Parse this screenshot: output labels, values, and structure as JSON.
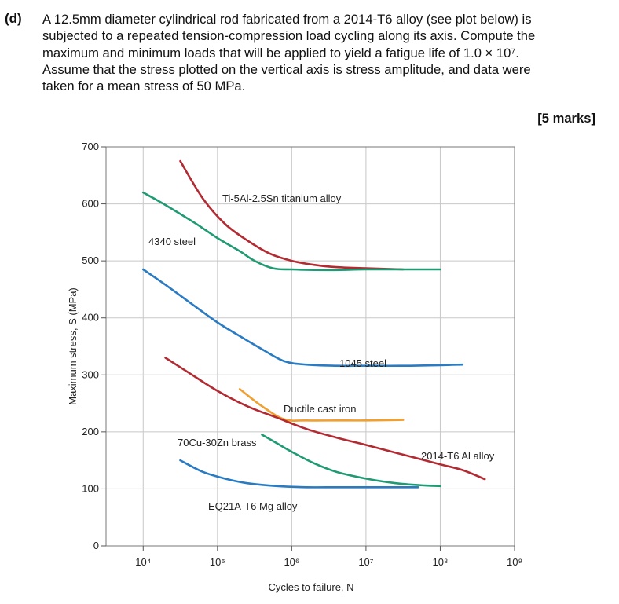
{
  "question": {
    "label": "(d)",
    "lines": [
      "A 12.5mm diameter cylindrical rod fabricated from a 2014-T6 alloy (see plot below) is",
      "subjected to a repeated tension-compression load cycling along its axis. Compute the",
      "maximum and minimum loads that will be applied to yield a fatigue life of 1.0 × 10⁷.",
      "Assume that the stress plotted on the vertical axis is stress amplitude, and data were",
      "taken for a mean stress of 50 MPa."
    ],
    "marks": "[5 marks]"
  },
  "chart_data": {
    "type": "line",
    "title": "",
    "xlabel": "Cycles to failure, N",
    "ylabel": "Maximum stress, S (MPa)",
    "x_scale": "log",
    "x_ticks": [
      "10⁴",
      "10⁵",
      "10⁶",
      "10⁷",
      "10⁸",
      "10⁹"
    ],
    "y_ticks": [
      "0",
      "100",
      "200",
      "300",
      "400",
      "500",
      "600",
      "700"
    ],
    "xlim_log10": [
      3.5,
      9.0
    ],
    "ylim": [
      0,
      700
    ],
    "series": [
      {
        "name": "Ti-5Al-2.5Sn titanium alloy",
        "color": "#b22a32",
        "points": [
          [
            4.5,
            675
          ],
          [
            4.8,
            610
          ],
          [
            5.1,
            565
          ],
          [
            5.4,
            536
          ],
          [
            5.7,
            513
          ],
          [
            6.0,
            500
          ],
          [
            6.3,
            493
          ],
          [
            6.6,
            489
          ],
          [
            7.0,
            487
          ],
          [
            7.5,
            485
          ]
        ]
      },
      {
        "name": "4340 steel",
        "color": "#1f9a73",
        "points": [
          [
            4.0,
            620
          ],
          [
            4.3,
            598
          ],
          [
            4.7,
            566
          ],
          [
            5.0,
            540
          ],
          [
            5.3,
            517
          ],
          [
            5.5,
            500
          ],
          [
            5.75,
            487
          ],
          [
            6.0,
            485
          ],
          [
            6.5,
            484
          ],
          [
            7.0,
            485
          ],
          [
            7.5,
            485
          ],
          [
            8.0,
            485
          ]
        ]
      },
      {
        "name": "1045 steel",
        "color": "#2a7bc2",
        "points": [
          [
            4.0,
            485
          ],
          [
            4.3,
            458
          ],
          [
            4.7,
            420
          ],
          [
            5.0,
            392
          ],
          [
            5.3,
            368
          ],
          [
            5.6,
            345
          ],
          [
            5.9,
            324
          ],
          [
            6.2,
            318
          ],
          [
            6.6,
            316
          ],
          [
            7.0,
            316
          ],
          [
            7.5,
            316
          ],
          [
            8.0,
            317
          ],
          [
            8.3,
            318
          ]
        ]
      },
      {
        "name": "Ductile cast iron",
        "color": "#f0a030",
        "points": [
          [
            5.3,
            275
          ],
          [
            5.6,
            245
          ],
          [
            5.9,
            222
          ],
          [
            6.2,
            220
          ],
          [
            6.6,
            220
          ],
          [
            7.0,
            220
          ],
          [
            7.5,
            221
          ]
        ]
      },
      {
        "name": "70Cu-30Zn brass",
        "color": "#1f9a73",
        "points": [
          [
            5.6,
            195
          ],
          [
            5.8,
            180
          ],
          [
            6.0,
            165
          ],
          [
            6.3,
            145
          ],
          [
            6.6,
            130
          ],
          [
            7.0,
            118
          ],
          [
            7.4,
            110
          ],
          [
            7.8,
            106
          ],
          [
            8.0,
            105
          ]
        ]
      },
      {
        "name": "2014-T6 Al alloy",
        "color": "#b22a32",
        "points": [
          [
            4.3,
            330
          ],
          [
            4.6,
            305
          ],
          [
            5.0,
            272
          ],
          [
            5.4,
            245
          ],
          [
            5.8,
            225
          ],
          [
            6.2,
            205
          ],
          [
            6.6,
            190
          ],
          [
            7.0,
            177
          ],
          [
            7.5,
            160
          ],
          [
            8.0,
            143
          ],
          [
            8.3,
            133
          ],
          [
            8.6,
            117
          ]
        ]
      },
      {
        "name": "EQ21A-T6 Mg alloy",
        "color": "#2a7bc2",
        "points": [
          [
            4.5,
            150
          ],
          [
            4.8,
            130
          ],
          [
            5.1,
            118
          ],
          [
            5.4,
            110
          ],
          [
            5.8,
            105
          ],
          [
            6.2,
            103
          ],
          [
            6.6,
            103
          ],
          [
            7.0,
            103
          ],
          [
            7.4,
            103
          ],
          [
            7.7,
            103
          ]
        ]
      }
    ],
    "annotations": [
      {
        "text": "Ti-5Al-2.5Sn titanium alloy",
        "near": "top"
      },
      {
        "text": "4340 steel",
        "near": "upper-left"
      },
      {
        "text": "1045 steel",
        "near": "middle-right"
      },
      {
        "text": "Ductile cast iron",
        "near": "middle"
      },
      {
        "text": "70Cu-30Zn brass",
        "near": "lower-middle"
      },
      {
        "text": "2014-T6 Al alloy",
        "near": "lower-right"
      },
      {
        "text": "EQ21A-T6 Mg alloy",
        "near": "bottom"
      }
    ]
  }
}
